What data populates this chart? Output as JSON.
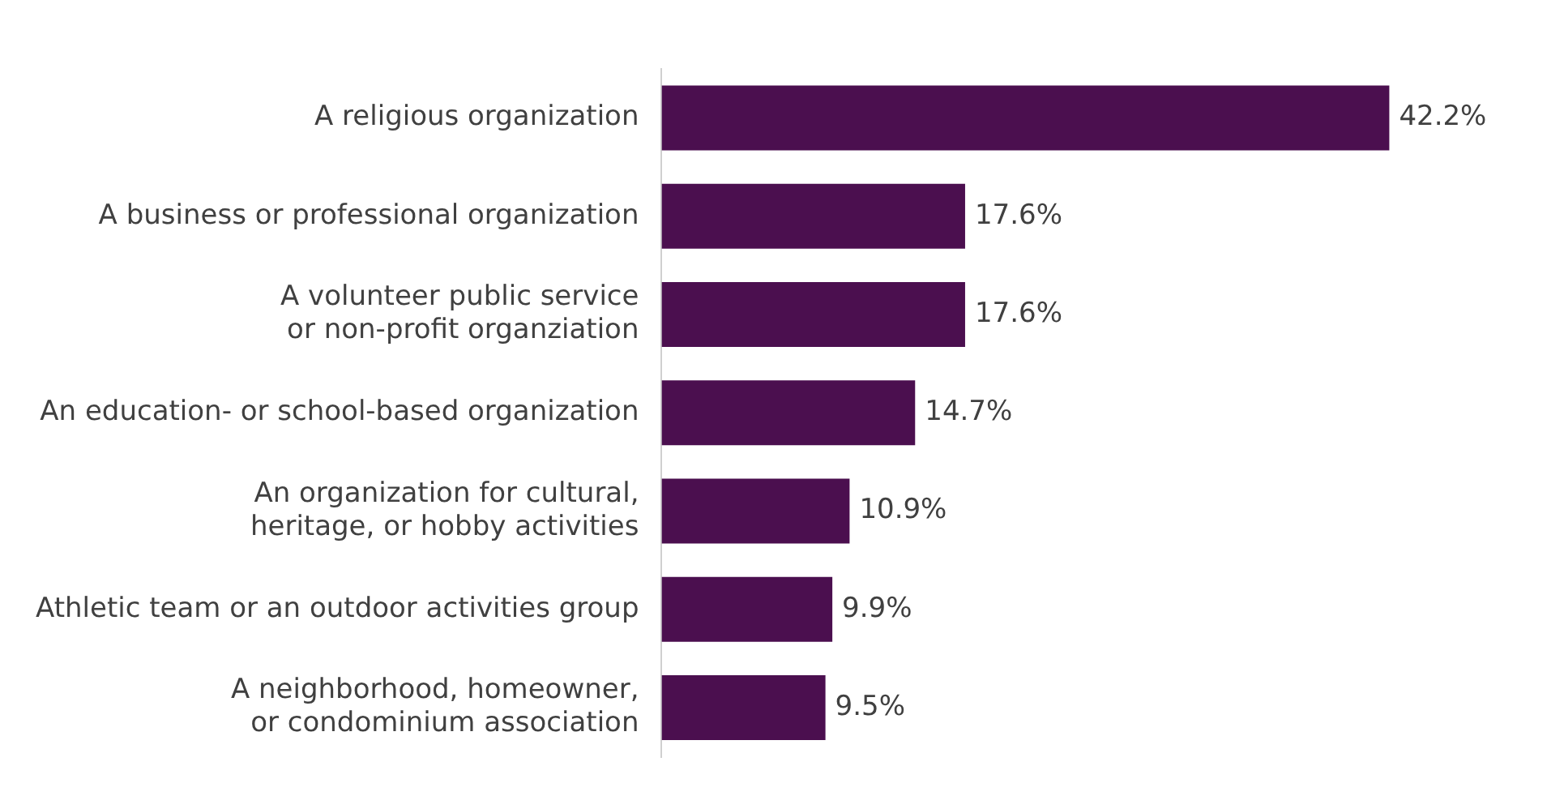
{
  "chart_data": {
    "type": "bar",
    "orientation": "horizontal",
    "categories": [
      "A religious organization",
      "A business or professional organization",
      "A volunteer public service\nor non-profit organziation",
      "An education- or school-based organization",
      "An organization for cultural,\nheritage, or hobby activities",
      "Athletic team or an outdoor activities group",
      "A neighborhood, homeowner,\nor condominium association"
    ],
    "values": [
      42.2,
      17.6,
      17.6,
      14.7,
      10.9,
      9.9,
      9.5
    ],
    "value_labels": [
      "42.2%",
      "17.6%",
      "17.6%",
      "14.7%",
      "10.9%",
      "9.9%",
      "9.5%"
    ],
    "color": "#4b0f4f",
    "legend": false
  }
}
